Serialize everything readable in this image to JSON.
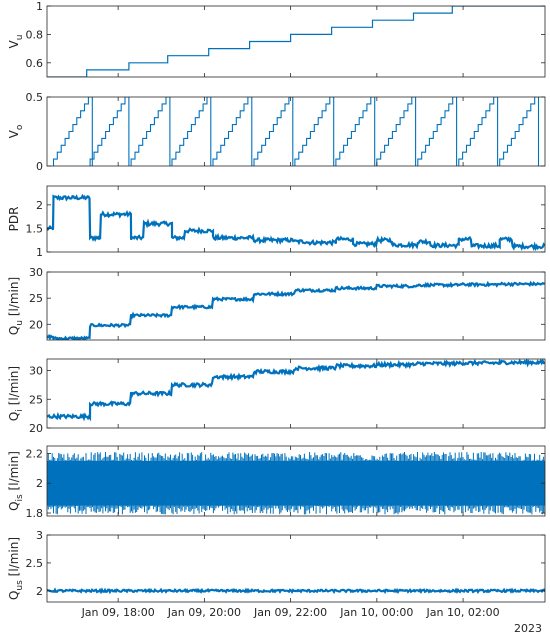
{
  "colors": {
    "series": "#0072BD",
    "axis": "#262626",
    "background": "#ffffff"
  },
  "x_axis": {
    "ticks": [
      {
        "t": 17.0,
        "label": "Jan 09, 18:00"
      },
      {
        "t": 19.0,
        "label": "Jan 09, 20:00"
      },
      {
        "t": 21.0,
        "label": "Jan 09, 22:00"
      },
      {
        "t": 23.0,
        "label": "Jan 10, 00:00"
      },
      {
        "t": 25.0,
        "label": "Jan 10, 02:00"
      }
    ],
    "year_label": "2023",
    "range": [
      15.35,
      26.9
    ]
  },
  "chart_data": [
    {
      "type": "line",
      "id": "vu",
      "ylabel": "V",
      "ylabel_sub": "u",
      "yticks": [
        0.6,
        0.8,
        1
      ],
      "ytick_labels": [
        "0.6",
        "0.8",
        "1"
      ],
      "ylim": [
        0.5,
        1.0
      ],
      "series": [
        {
          "steps": [
            [
              15.35,
              0.5
            ],
            [
              16.27,
              0.55
            ],
            [
              17.25,
              0.6
            ],
            [
              18.15,
              0.65
            ],
            [
              19.1,
              0.7
            ],
            [
              20.05,
              0.75
            ],
            [
              21.0,
              0.8
            ],
            [
              21.95,
              0.85
            ],
            [
              22.9,
              0.9
            ],
            [
              23.85,
              0.95
            ],
            [
              24.75,
              1.0
            ]
          ]
        }
      ]
    },
    {
      "type": "line",
      "id": "vo",
      "ylabel": "V",
      "ylabel_sub": "o",
      "yticks": [
        0,
        0.5
      ],
      "ytick_labels": [
        "0",
        "0.5"
      ],
      "ylim": [
        0,
        0.5
      ],
      "sawtooth": {
        "starts": [
          15.5,
          16.35,
          17.3,
          18.25,
          19.2,
          20.15,
          21.1,
          22.05,
          23.0,
          23.95,
          24.9,
          25.85
        ],
        "period": 0.9,
        "levels": 10,
        "max": 0.5
      }
    },
    {
      "type": "line",
      "id": "pdr",
      "ylabel": "PDR",
      "ylabel_sub": "",
      "yticks": [
        1,
        1.5,
        2
      ],
      "ytick_labels": [
        "1",
        "1.5",
        "2"
      ],
      "ylim": [
        1,
        2.4
      ],
      "series": [
        {
          "plateaus": [
            [
              15.35,
              15.5,
              1.5
            ],
            [
              15.5,
              16.35,
              2.15
            ],
            [
              16.35,
              16.6,
              1.3
            ],
            [
              16.6,
              17.3,
              1.8
            ],
            [
              17.3,
              17.6,
              1.3
            ],
            [
              17.6,
              18.25,
              1.6
            ],
            [
              18.25,
              18.55,
              1.3
            ],
            [
              18.55,
              19.2,
              1.45
            ],
            [
              19.2,
              20.15,
              1.3
            ],
            [
              20.15,
              20.55,
              1.25
            ],
            [
              20.55,
              21.1,
              1.25
            ],
            [
              21.1,
              21.4,
              1.22
            ],
            [
              21.4,
              22.05,
              1.2
            ],
            [
              22.05,
              22.45,
              1.27
            ],
            [
              22.45,
              23.0,
              1.17
            ],
            [
              23.0,
              23.35,
              1.25
            ],
            [
              23.35,
              23.95,
              1.15
            ],
            [
              23.95,
              24.25,
              1.22
            ],
            [
              24.25,
              24.9,
              1.14
            ],
            [
              24.9,
              25.2,
              1.27
            ],
            [
              25.2,
              25.85,
              1.13
            ],
            [
              25.85,
              26.15,
              1.27
            ],
            [
              26.15,
              26.9,
              1.12
            ]
          ],
          "noise": 0.04
        }
      ]
    },
    {
      "type": "line",
      "id": "qu",
      "ylabel": "Q",
      "ylabel_sub": "u",
      "ylabel_unit": " [l/min]",
      "yticks": [
        20,
        25,
        30
      ],
      "ytick_labels": [
        "20",
        "25",
        "30"
      ],
      "ylim": [
        17,
        30
      ],
      "series": [
        {
          "plateaus": [
            [
              15.35,
              15.5,
              17.6
            ],
            [
              15.5,
              16.35,
              17.3
            ],
            [
              16.35,
              17.3,
              19.8
            ],
            [
              17.3,
              18.25,
              21.7
            ],
            [
              18.25,
              19.2,
              23.3
            ],
            [
              19.2,
              20.15,
              24.8
            ],
            [
              20.15,
              21.1,
              25.8
            ],
            [
              21.1,
              22.05,
              26.5
            ],
            [
              22.05,
              23.0,
              26.9
            ],
            [
              23.0,
              23.95,
              27.3
            ],
            [
              23.95,
              24.9,
              27.5
            ],
            [
              24.9,
              25.85,
              27.6
            ],
            [
              25.85,
              26.9,
              27.7
            ]
          ],
          "noise": 0.25
        }
      ]
    },
    {
      "type": "line",
      "id": "qi",
      "ylabel": "Q",
      "ylabel_sub": "i",
      "ylabel_unit": " [l/min]",
      "yticks": [
        20,
        25,
        30
      ],
      "ytick_labels": [
        "20",
        "25",
        "30"
      ],
      "ylim": [
        20,
        32
      ],
      "series": [
        {
          "plateaus": [
            [
              15.35,
              16.35,
              22.0
            ],
            [
              16.35,
              17.3,
              24.2
            ],
            [
              17.3,
              18.25,
              26.0
            ],
            [
              18.25,
              19.2,
              27.5
            ],
            [
              19.2,
              20.15,
              28.9
            ],
            [
              20.15,
              21.1,
              29.8
            ],
            [
              21.1,
              22.05,
              30.4
            ],
            [
              22.05,
              23.0,
              30.8
            ],
            [
              23.0,
              23.95,
              31.0
            ],
            [
              23.95,
              24.9,
              31.2
            ],
            [
              24.9,
              25.85,
              31.3
            ],
            [
              25.85,
              26.9,
              31.4
            ]
          ],
          "noise": 0.3
        }
      ]
    },
    {
      "type": "line",
      "id": "qis",
      "ylabel": "Q",
      "ylabel_sub": "is",
      "ylabel_unit": " [l/min]",
      "yticks": [
        1.8,
        2,
        2.2
      ],
      "ytick_labels": [
        "1.8",
        "2",
        "2.2"
      ],
      "ylim": [
        1.78,
        2.25
      ],
      "band": {
        "center": 2.0,
        "inner": 0.15,
        "outer": 0.21
      }
    },
    {
      "type": "line",
      "id": "qus",
      "ylabel": "Q",
      "ylabel_sub": "us",
      "ylabel_unit": " [l/min]",
      "yticks": [
        2,
        2.5,
        3
      ],
      "ytick_labels": [
        "2",
        "2.5",
        "3"
      ],
      "ylim": [
        1.8,
        3.0
      ],
      "series": [
        {
          "plateaus": [
            [
              15.35,
              26.9,
              2.0
            ]
          ],
          "noise": 0.02
        }
      ]
    }
  ]
}
